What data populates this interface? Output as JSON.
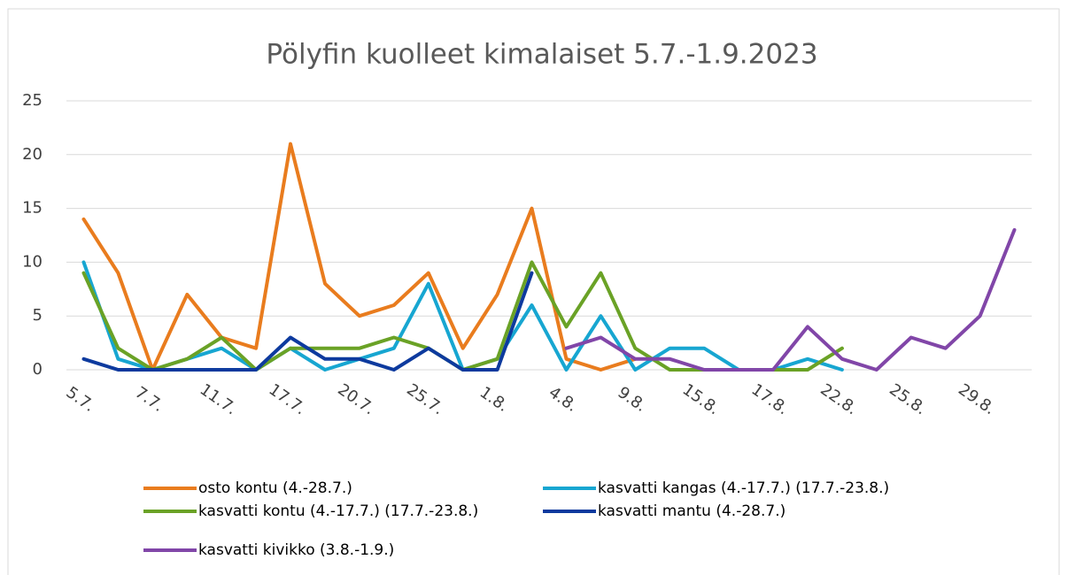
{
  "chart_data": {
    "type": "line",
    "title": "Pölyfin kuolleet kimalaiset 5.7.-1.9.2023",
    "categories": [
      "5.7.",
      null,
      "7.7.",
      null,
      "11.7.",
      null,
      "17.7.",
      null,
      "20.7.",
      null,
      "25.7.",
      null,
      "1.8.",
      null,
      "4.8.",
      null,
      "9.8.",
      null,
      "15.8.",
      null,
      "17.8.",
      null,
      "22.8.",
      null,
      "25.8.",
      null,
      "29.8.",
      null
    ],
    "series": [
      {
        "name": "osto kontu (4.-28.7.)",
        "color": "#e97c1e",
        "values": [
          14,
          9,
          0,
          7,
          3,
          2,
          21,
          8,
          5,
          6,
          9,
          2,
          7,
          15,
          1,
          0,
          1,
          null,
          null,
          null,
          null,
          null,
          null,
          null,
          null,
          null,
          null,
          null
        ]
      },
      {
        "name": "kasvatti kangas (4.-17.7.) (17.7.-23.8.)",
        "color": "#17a6d1",
        "values": [
          10,
          1,
          0,
          1,
          2,
          0,
          2,
          0,
          1,
          2,
          8,
          0,
          1,
          6,
          0,
          5,
          0,
          2,
          2,
          0,
          0,
          1,
          0,
          null,
          null,
          null,
          null,
          null
        ]
      },
      {
        "name": "kasvatti kontu (4.-17.7.) (17.7.-23.8.)",
        "color": "#6aa226",
        "values": [
          9,
          2,
          0,
          1,
          3,
          0,
          2,
          2,
          2,
          3,
          2,
          0,
          1,
          10,
          4,
          9,
          2,
          0,
          0,
          0,
          0,
          0,
          2,
          null,
          null,
          null,
          null,
          null
        ]
      },
      {
        "name": "kasvatti mantu (4.-28.7.)",
        "color": "#0d3a9e",
        "values": [
          1,
          0,
          0,
          0,
          0,
          0,
          3,
          1,
          1,
          0,
          2,
          0,
          0,
          9,
          null,
          null,
          null,
          null,
          null,
          null,
          null,
          null,
          null,
          null,
          null,
          null,
          null,
          null
        ]
      },
      {
        "name": "kasvatti kivikko (3.8.-1.9.)",
        "color": "#8146a8",
        "values": [
          null,
          null,
          null,
          null,
          null,
          null,
          null,
          null,
          null,
          null,
          null,
          null,
          null,
          null,
          2,
          3,
          1,
          1,
          0,
          0,
          0,
          4,
          1,
          0,
          3,
          2,
          5,
          13
        ]
      }
    ],
    "ylim": [
      0,
      25
    ],
    "yticks": [
      0,
      5,
      10,
      15,
      20,
      25
    ],
    "grid": true
  }
}
